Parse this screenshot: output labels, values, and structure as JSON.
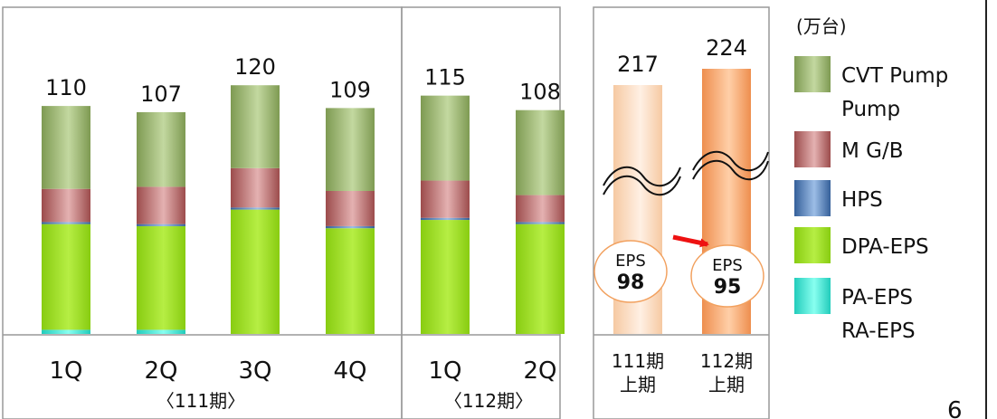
{
  "unit_label": "(万台)",
  "page_number": "6",
  "chart_data": [
    {
      "type": "bar",
      "stacked": true,
      "group_label": "〈111期〉",
      "categories": [
        "1Q",
        "2Q",
        "3Q",
        "4Q"
      ],
      "totals": [
        110,
        107,
        120,
        109
      ],
      "series": [
        {
          "name": "PA-EPS RA-EPS",
          "values": [
            2,
            2,
            0,
            0
          ]
        },
        {
          "name": "DPA-EPS",
          "values": [
            51,
            50,
            60,
            51
          ]
        },
        {
          "name": "HPS",
          "values": [
            1,
            1,
            1,
            1
          ]
        },
        {
          "name": "M G/B",
          "values": [
            16,
            18,
            19,
            17
          ]
        },
        {
          "name": "CVT Pump Pump",
          "values": [
            40,
            36,
            40,
            40
          ]
        }
      ]
    },
    {
      "type": "bar",
      "stacked": true,
      "group_label": "〈112期〉",
      "categories": [
        "1Q",
        "2Q"
      ],
      "totals": [
        115,
        108
      ],
      "series": [
        {
          "name": "PA-EPS RA-EPS",
          "values": [
            0,
            0
          ]
        },
        {
          "name": "DPA-EPS",
          "values": [
            55,
            53
          ]
        },
        {
          "name": "HPS",
          "values": [
            1,
            1
          ]
        },
        {
          "name": "M G/B",
          "values": [
            18,
            13
          ]
        },
        {
          "name": "CVT Pump Pump",
          "values": [
            41,
            41
          ]
        }
      ]
    },
    {
      "type": "bar",
      "broken_axis": true,
      "categories": [
        [
          "111期",
          "上期"
        ],
        [
          "112期",
          "上期"
        ]
      ],
      "values": [
        217,
        224
      ],
      "annotations": [
        {
          "label": "EPS",
          "value": "98"
        },
        {
          "label": "EPS",
          "value": "95"
        }
      ]
    }
  ],
  "legend": [
    {
      "label_lines": [
        "CVT Pump",
        "Pump"
      ],
      "color": "#98b46a"
    },
    {
      "label_lines": [
        "M G/B"
      ],
      "color": "#b86a6a"
    },
    {
      "label_lines": [
        "HPS"
      ],
      "color": "#4f7fb8"
    },
    {
      "label_lines": [
        "DPA-EPS"
      ],
      "color": "#99dd22"
    },
    {
      "label_lines": [
        "PA-EPS",
        "RA-EPS"
      ],
      "color": "#33eedd"
    }
  ]
}
